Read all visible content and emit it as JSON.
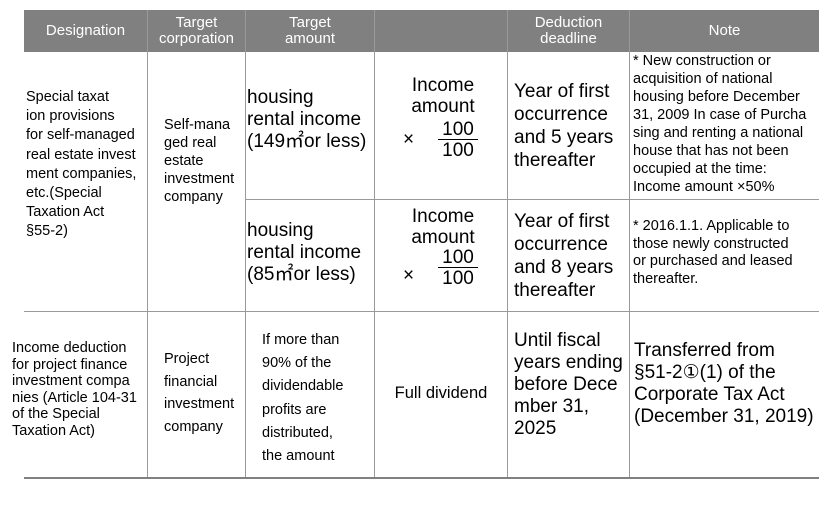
{
  "headers": {
    "designation": "Designation",
    "target_corporation": "Target\ncorporation",
    "target_amount": "Target\namount",
    "blank": "",
    "deduction_deadline": "Deduction\ndeadline",
    "note": "Note"
  },
  "row1": {
    "designation": "Special taxat\nion provisions\nfor self-managed\nreal estate invest\nment companies,\netc.(Special\nTaxation Act\n§55-2)",
    "corporation": "Self-mana\nged real\nestate\ninvestment\ncompany",
    "sub_a": {
      "amount": "housing\nrental income\n(149㎡or less)",
      "formula_label": "Income\namount",
      "times": "×",
      "numerator": "100",
      "denominator": "100",
      "deadline": "Year of first\noccurrence\nand 5 years\nthereafter",
      "note": "* New construction or\nacquisition of national\nhousing before December\n31, 2009 In case of Purcha\nsing and renting a national\nhouse that has not been\noccupied at the time:\nIncome amount ×50%"
    },
    "sub_b": {
      "amount": "housing\nrental income\n(85㎡or less)",
      "formula_label": "Income\namount",
      "times": "×",
      "numerator": "100",
      "denominator": "100",
      "deadline": "Year of first\noccurrence\nand 8 years\nthereafter",
      "note": "* 2016.1.1. Applicable to\n  those newly constructed\nor purchased and leased\nthereafter."
    }
  },
  "row2": {
    "designation": "Income deduction\nfor project finance\ninvestment compa\nnies (Article 104-31\nof the Special\nTaxation Act)",
    "corporation": "Project\nfinancial\ninvestment\ncompany",
    "amount": "If more than\n90% of the\ndividendable\nprofits are\ndistributed,\nthe amount",
    "formula": "Full dividend",
    "deadline": "Until fiscal\nyears ending\nbefore Dece\nmber 31,\n2025",
    "note": "Transferred from\n§51-2①(1) of the\nCorporate Tax Act\n(December 31, 2019)"
  }
}
